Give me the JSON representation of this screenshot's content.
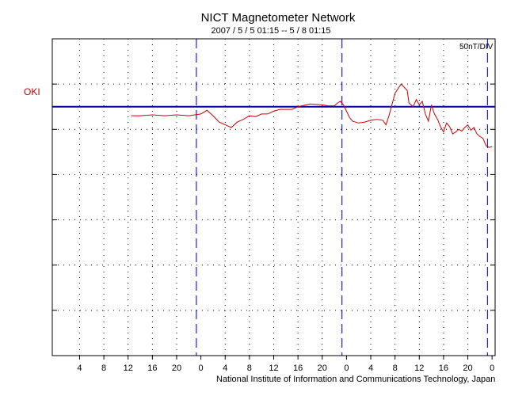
{
  "chart_data": {
    "type": "line",
    "title": "NICT Magnetometer Network",
    "subtitle": "2007 / 5 / 5   01:15 --  5 / 8   01:15",
    "scale_label": "50nT/DIV",
    "footer": "National Institute of Information and Communications Technology, Japan",
    "x_tick_labels": [
      "4",
      "8",
      "12",
      "16",
      "20",
      "0",
      "4",
      "8",
      "12",
      "16",
      "20",
      "0",
      "4",
      "8",
      "12",
      "16",
      "20",
      "0"
    ],
    "x_unit": "hours",
    "x_range": [
      -4.5,
      68.5
    ],
    "y_range": [
      -275,
      75
    ],
    "y_divisions": 7,
    "y_div_nT": 50,
    "baseline_label": "OKI",
    "grid": true,
    "colors": {
      "series": "#cc0000",
      "baseline": "#000099",
      "day_boundary": "#1a1aff",
      "grid": "#000000",
      "station_label": "#c00000"
    },
    "day_boundaries": [
      19.25,
      43.25,
      67.25
    ],
    "series": [
      {
        "x": [
          8.5,
          10,
          12,
          14,
          16,
          18,
          20,
          21,
          22,
          23,
          24,
          25,
          26,
          27,
          28,
          29,
          30,
          31,
          32,
          33,
          34,
          35,
          36,
          38,
          40,
          41,
          42,
          42.5,
          43,
          43.5,
          44,
          44.5,
          45,
          46,
          47,
          48,
          49,
          50,
          50.3,
          50.5,
          51,
          52,
          53,
          54,
          54.3,
          55,
          55.5,
          56,
          56.5,
          57,
          57.5,
          58,
          58.5,
          59,
          59.5,
          60,
          60.5,
          61,
          61.5,
          62,
          62.5,
          63,
          63.5,
          64,
          64.5,
          65,
          65.5,
          66,
          66.5,
          67,
          67.5,
          68
        ],
        "y": [
          -10,
          -10,
          -9,
          -10,
          -9,
          -10,
          -8,
          -4,
          -10,
          -17,
          -20,
          -23,
          -17,
          -14,
          -10,
          -11,
          -8,
          -8,
          -5,
          -3,
          -3,
          -3,
          0,
          3,
          2,
          1,
          1,
          4,
          6,
          2,
          -5,
          -12,
          -16,
          -18,
          -17,
          -15,
          -14,
          -15,
          -18,
          -20,
          -10,
          15,
          25,
          18,
          4,
          0,
          8,
          2,
          6,
          -8,
          -16,
          2,
          -8,
          -14,
          -22,
          -28,
          -18,
          -22,
          -30,
          -28,
          -25,
          -27,
          -23,
          -20,
          -26,
          -23,
          -30,
          -33,
          -35,
          -43,
          -45,
          -44
        ]
      }
    ]
  }
}
